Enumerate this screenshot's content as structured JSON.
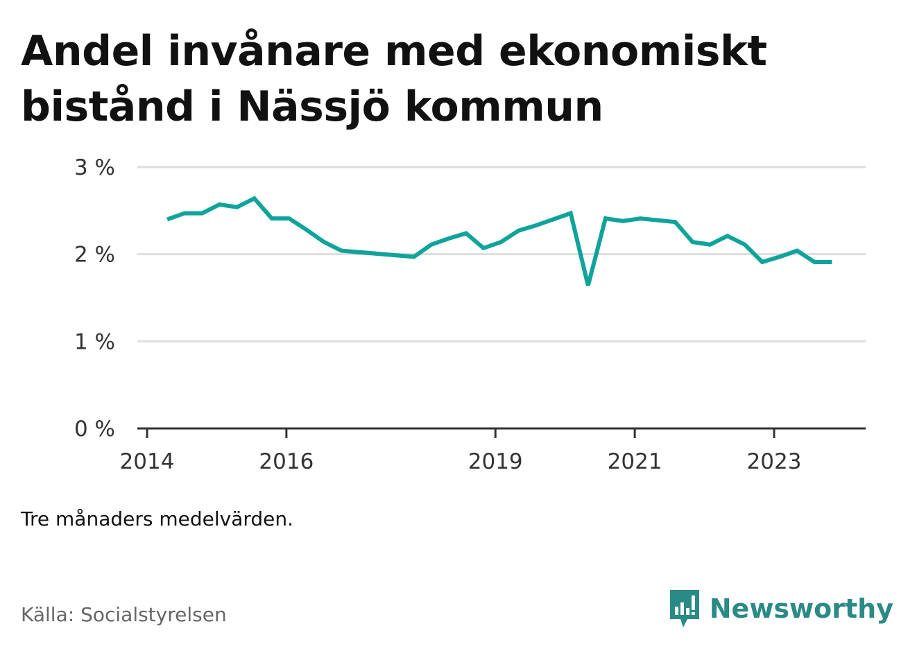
{
  "colors": {
    "line": "#0fa39b",
    "grid": "#dedede",
    "axis": "#333333",
    "brand": "#2a8a86"
  },
  "footer": {
    "note": "Tre månaders medelvärden.",
    "source": "Källa: Socialstyrelsen",
    "brand_name": "Newsworthy",
    "brand_icon": "newsworthy-logo-icon"
  },
  "chart_data": {
    "type": "line",
    "title": "Andel invånare med ekonomiskt bistånd i Nässjö kommun",
    "xlabel": "",
    "ylabel": "",
    "ylim": [
      0,
      3
    ],
    "xlim": [
      2013.9,
      2024.15
    ],
    "grid": true,
    "y_ticks": [
      {
        "value": 0,
        "label": "0 %"
      },
      {
        "value": 1,
        "label": "1 %"
      },
      {
        "value": 2,
        "label": "2 %"
      },
      {
        "value": 3,
        "label": "3 %"
      }
    ],
    "x_ticks": [
      {
        "value": 2014,
        "label": "2014"
      },
      {
        "value": 2016,
        "label": "2016"
      },
      {
        "value": 2019,
        "label": "2019"
      },
      {
        "value": 2021,
        "label": "2021"
      },
      {
        "value": 2023,
        "label": "2023"
      }
    ],
    "series": [
      {
        "name": "Andel invånare med ekonomiskt bistånd",
        "x": [
          2014.29,
          2014.54,
          2014.79,
          2015.04,
          2015.29,
          2015.54,
          2015.79,
          2016.04,
          2016.29,
          2016.54,
          2016.79,
          2017.83,
          2018.08,
          2018.33,
          2018.58,
          2018.83,
          2019.08,
          2019.33,
          2019.58,
          2019.83,
          2020.08,
          2020.33,
          2020.58,
          2020.83,
          2021.08,
          2021.33,
          2021.58,
          2021.83,
          2022.08,
          2022.33,
          2022.58,
          2022.83,
          2023.08,
          2023.33,
          2023.58,
          2023.83
        ],
        "values": [
          2.4,
          2.47,
          2.47,
          2.57,
          2.54,
          2.64,
          2.41,
          2.41,
          2.28,
          2.14,
          2.04,
          1.97,
          2.11,
          2.18,
          2.24,
          2.07,
          2.14,
          2.27,
          2.33,
          2.4,
          2.47,
          1.64,
          2.41,
          2.38,
          2.41,
          2.39,
          2.37,
          2.14,
          2.11,
          2.21,
          2.11,
          1.91,
          1.97,
          2.04,
          1.91,
          1.91
        ]
      }
    ]
  }
}
